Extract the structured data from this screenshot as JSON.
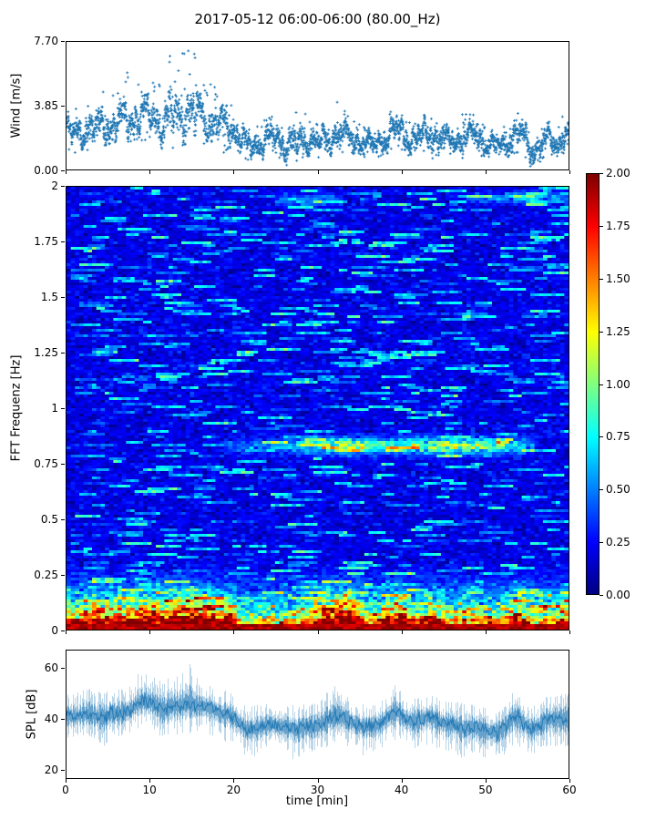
{
  "figure": {
    "title": "2017-05-12 06:00-06:00 (80.00_Hz)",
    "accent_color": "#1f77b4",
    "background": "#ffffff"
  },
  "axes": {
    "x": {
      "label": "time [min]",
      "ticks": [
        "0",
        "10",
        "20",
        "30",
        "40",
        "50",
        "60"
      ],
      "lim": [
        0,
        60
      ]
    },
    "wind": {
      "ylabel": "Wind [m/s]",
      "yticks": [
        "7.70",
        "3.85",
        "0.00"
      ],
      "ylim": [
        0,
        7.7
      ]
    },
    "spectrogram": {
      "ylabel": "FFT Frequenz [Hz]",
      "yticks": [
        "2",
        "1.75",
        "1.5",
        "1.25",
        "1",
        "0.75",
        "0.5",
        "0.25",
        "0"
      ],
      "ylim": [
        0,
        2
      ]
    },
    "spl": {
      "ylabel": "SPL [dB]",
      "yticks": [
        "60",
        "40",
        "20"
      ],
      "ytick_values": [
        60,
        40,
        20
      ],
      "ylim": [
        16.4,
        67.1
      ]
    },
    "colorbar": {
      "ticks": [
        "2.00",
        "1.75",
        "1.50",
        "1.25",
        "1.00",
        "0.75",
        "0.50",
        "0.25",
        "0.00"
      ],
      "lim": [
        0,
        2
      ],
      "colormap": "jet"
    }
  },
  "chart_data": [
    {
      "type": "scatter",
      "name": "wind-speed",
      "title": "2017-05-12 06:00-06:00 (80.00_Hz)",
      "ylabel": "Wind [m/s]",
      "xlim": [
        0,
        60
      ],
      "ylim": [
        0,
        7.7
      ],
      "marker": "plus",
      "marker_color": "#1f77b4",
      "x_start": 0.5,
      "x_step": 1,
      "x_unit": "min",
      "mean": [
        2.2,
        2.4,
        2.5,
        2.4,
        2.7,
        2.6,
        2.9,
        3.1,
        3.3,
        3.4,
        3.1,
        2.9,
        3.2,
        3.4,
        3.6,
        3.3,
        3.1,
        2.9,
        2.7,
        2.6,
        2.1,
        1.4,
        1.5,
        1.8,
        2.0,
        1.8,
        1.6,
        1.5,
        1.8,
        1.9,
        1.6,
        1.9,
        2.3,
        2.0,
        1.8,
        1.6,
        1.4,
        1.7,
        2.2,
        2.4,
        2.0,
        1.8,
        2.0,
        2.2,
        1.9,
        1.7,
        1.8,
        2.0,
        2.2,
        1.8,
        1.5,
        1.3,
        1.7,
        2.2,
        2.0,
        1.2,
        1.5,
        1.8,
        1.6,
        2.2
      ],
      "max": [
        3.6,
        3.9,
        4.4,
        4.2,
        5.0,
        4.6,
        5.5,
        6.3,
        5.8,
        5.5,
        5.2,
        6.0,
        7.2,
        6.8,
        7.7,
        7.4,
        6.0,
        5.2,
        4.5,
        4.2,
        3.4,
        2.4,
        2.6,
        3.0,
        3.3,
        3.0,
        4.2,
        4.0,
        3.8,
        3.1,
        2.6,
        3.1,
        4.6,
        3.3,
        2.9,
        2.6,
        2.3,
        2.8,
        4.0,
        4.2,
        3.3,
        2.9,
        3.2,
        3.6,
        3.1,
        2.8,
        2.9,
        3.5,
        3.6,
        2.9,
        2.5,
        2.2,
        2.8,
        3.8,
        3.3,
        2.1,
        2.5,
        2.9,
        2.6,
        3.5
      ],
      "min": [
        1.0,
        1.1,
        1.2,
        1.1,
        1.3,
        1.2,
        1.4,
        1.5,
        1.7,
        1.7,
        1.5,
        1.3,
        1.5,
        1.6,
        1.7,
        1.5,
        1.4,
        1.3,
        1.2,
        1.1,
        0.8,
        0.6,
        0.7,
        0.9,
        1.0,
        0.9,
        0.8,
        0.6,
        0.8,
        0.9,
        0.7,
        0.9,
        1.1,
        0.9,
        0.8,
        0.7,
        0.5,
        0.7,
        1.0,
        1.1,
        0.9,
        0.8,
        0.9,
        1.0,
        0.8,
        0.7,
        0.8,
        0.9,
        1.0,
        0.8,
        0.6,
        0.4,
        0.7,
        1.0,
        0.9,
        0.3,
        0.6,
        0.8,
        0.7,
        1.0
      ]
    },
    {
      "type": "heatmap",
      "name": "fft-spectrogram",
      "ylabel": "FFT Frequenz [Hz]",
      "xlim": [
        0,
        60
      ],
      "ylim": [
        0,
        2
      ],
      "colormap": "jet",
      "clim": [
        0,
        2
      ],
      "base_level": 0.2,
      "base_noise": 0.075,
      "streak_probability": 0.045,
      "low_band_f_max": 0.35,
      "low_band_gain": 2.3,
      "low_band_profile": [
        0.7,
        0.7,
        0.75,
        0.7,
        0.8,
        0.75,
        0.8,
        0.85,
        0.9,
        0.95,
        1.0,
        1.0,
        1.0,
        1.0,
        1.0,
        1.0,
        0.95,
        0.9,
        0.85,
        0.8,
        0.6,
        0.5,
        0.5,
        0.55,
        0.6,
        0.55,
        0.5,
        0.5,
        0.65,
        0.7,
        0.85,
        0.95,
        0.95,
        1.0,
        0.8,
        0.6,
        0.55,
        0.6,
        0.85,
        0.9,
        0.75,
        0.6,
        0.65,
        0.7,
        0.65,
        0.55,
        0.55,
        0.6,
        0.6,
        0.55,
        0.5,
        0.45,
        0.55,
        0.7,
        0.65,
        0.5,
        0.55,
        0.6,
        0.55,
        0.85
      ],
      "features": [
        {
          "type": "horizontal_streak",
          "f_center": 0.83,
          "f_width": 0.035,
          "t_start": 19,
          "t_end": 56,
          "amp_profile": [
            [
              19,
              0.15
            ],
            [
              26,
              0.4
            ],
            [
              30,
              0.55
            ],
            [
              34,
              0.95
            ],
            [
              38,
              0.55
            ],
            [
              43,
              0.8
            ],
            [
              49,
              0.85
            ],
            [
              53,
              0.6
            ],
            [
              56,
              0.25
            ]
          ]
        },
        {
          "type": "horizontal_streak",
          "f_center": 1.94,
          "f_width": 0.025,
          "t_start": 25,
          "t_end": 33,
          "amp_profile": [
            [
              25,
              0.2
            ],
            [
              29,
              0.45
            ],
            [
              33,
              0.2
            ]
          ]
        },
        {
          "type": "horizontal_streak",
          "f_center": 1.95,
          "f_width": 0.025,
          "t_start": 48,
          "t_end": 60,
          "amp_profile": [
            [
              48,
              0.2
            ],
            [
              55,
              0.45
            ],
            [
              60,
              0.3
            ]
          ]
        }
      ]
    },
    {
      "type": "line",
      "name": "spl",
      "ylabel": "SPL [dB]",
      "xlabel": "time [min]",
      "xlim": [
        0,
        60
      ],
      "ylim": [
        16.4,
        67.1
      ],
      "line_color": "#1f77b4",
      "x_start": 0.5,
      "x_step": 1,
      "x_unit": "min",
      "mean": [
        41,
        41,
        42,
        41,
        41,
        42,
        42,
        43,
        46,
        47,
        46,
        43,
        45,
        45,
        46,
        45,
        45,
        44,
        42,
        42,
        39,
        36,
        36,
        37,
        38,
        37,
        37,
        36,
        37,
        37,
        38,
        40,
        41,
        40,
        38,
        37,
        37,
        38,
        41,
        43,
        40,
        39,
        40,
        41,
        39,
        38,
        38,
        36,
        37,
        36,
        35,
        35,
        37,
        41,
        39,
        36,
        37,
        40,
        40,
        40
      ],
      "lo": [
        32,
        33,
        33,
        31,
        28,
        32,
        33,
        34,
        36,
        37,
        34,
        30,
        34,
        33,
        33,
        34,
        33,
        32,
        30,
        30,
        27,
        24,
        25,
        27,
        28,
        27,
        26,
        22,
        26,
        27,
        28,
        29,
        30,
        29,
        27,
        25,
        26,
        27,
        30,
        31,
        29,
        28,
        29,
        30,
        28,
        27,
        26,
        24,
        26,
        25,
        24,
        23,
        26,
        30,
        28,
        25,
        26,
        29,
        28,
        29
      ],
      "hi": [
        50,
        51,
        53,
        51,
        51,
        52,
        52,
        53,
        58,
        60,
        57,
        57,
        58,
        57,
        65,
        57,
        56,
        53,
        52,
        52,
        48,
        45,
        46,
        47,
        48,
        46,
        46,
        45,
        47,
        46,
        48,
        52,
        56,
        49,
        47,
        46,
        46,
        47,
        51,
        56,
        49,
        48,
        49,
        50,
        48,
        47,
        47,
        46,
        46,
        45,
        44,
        44,
        46,
        51,
        48,
        45,
        47,
        49,
        50,
        50
      ]
    }
  ]
}
